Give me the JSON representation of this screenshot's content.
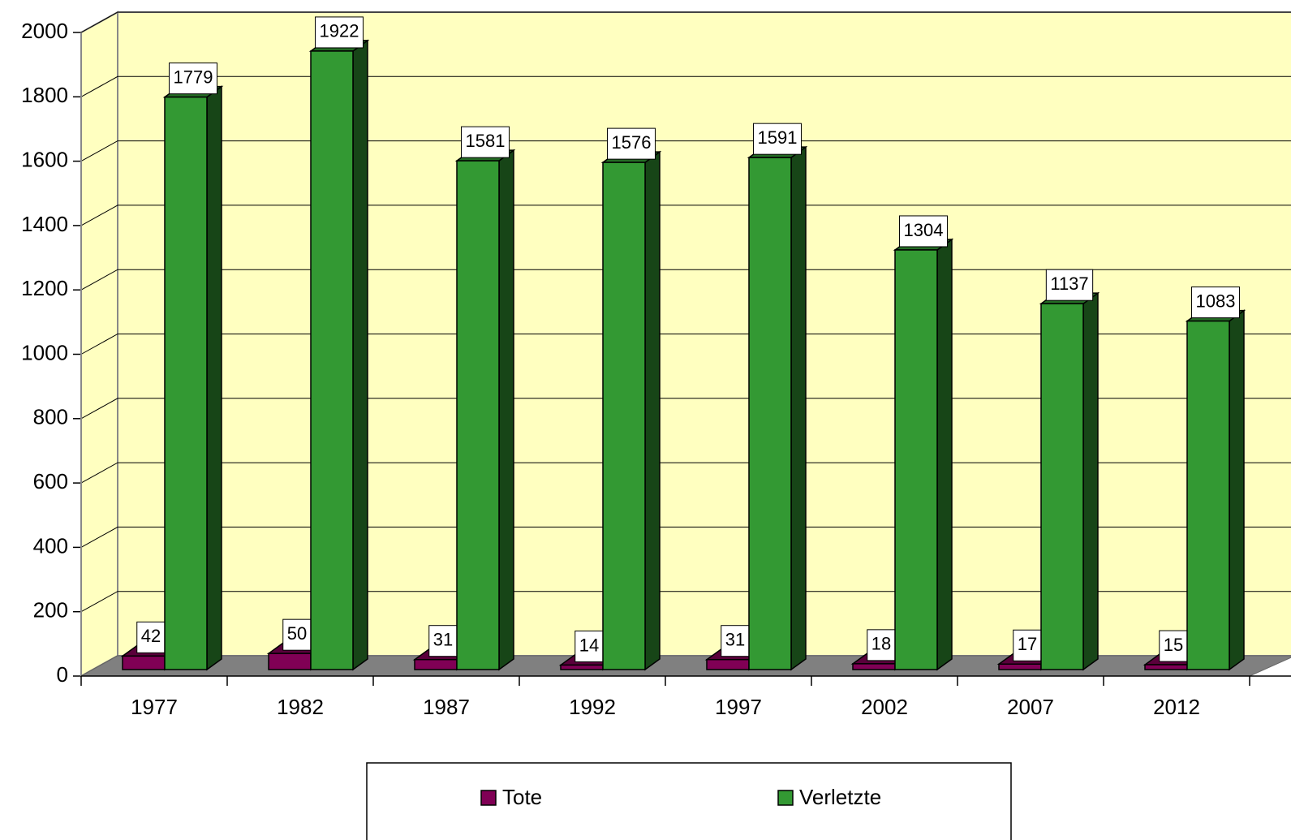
{
  "chart_data": {
    "type": "bar3d",
    "categories": [
      "1977",
      "1982",
      "1987",
      "1992",
      "1997",
      "2002",
      "2007",
      "2012"
    ],
    "series": [
      {
        "name": "Tote",
        "color": "#800055",
        "values": [
          42,
          50,
          31,
          14,
          31,
          18,
          17,
          15
        ]
      },
      {
        "name": "Verletzte",
        "color": "#339933",
        "values": [
          1779,
          1922,
          1581,
          1576,
          1591,
          1304,
          1137,
          1083
        ]
      }
    ],
    "ylim": [
      0,
      2000
    ],
    "yticks": [
      0,
      200,
      400,
      600,
      800,
      1000,
      1200,
      1400,
      1600,
      1800,
      2000
    ],
    "grid": true,
    "wall_color": "#ffffc0",
    "floor_color": "#808080",
    "legend": "bottom"
  }
}
